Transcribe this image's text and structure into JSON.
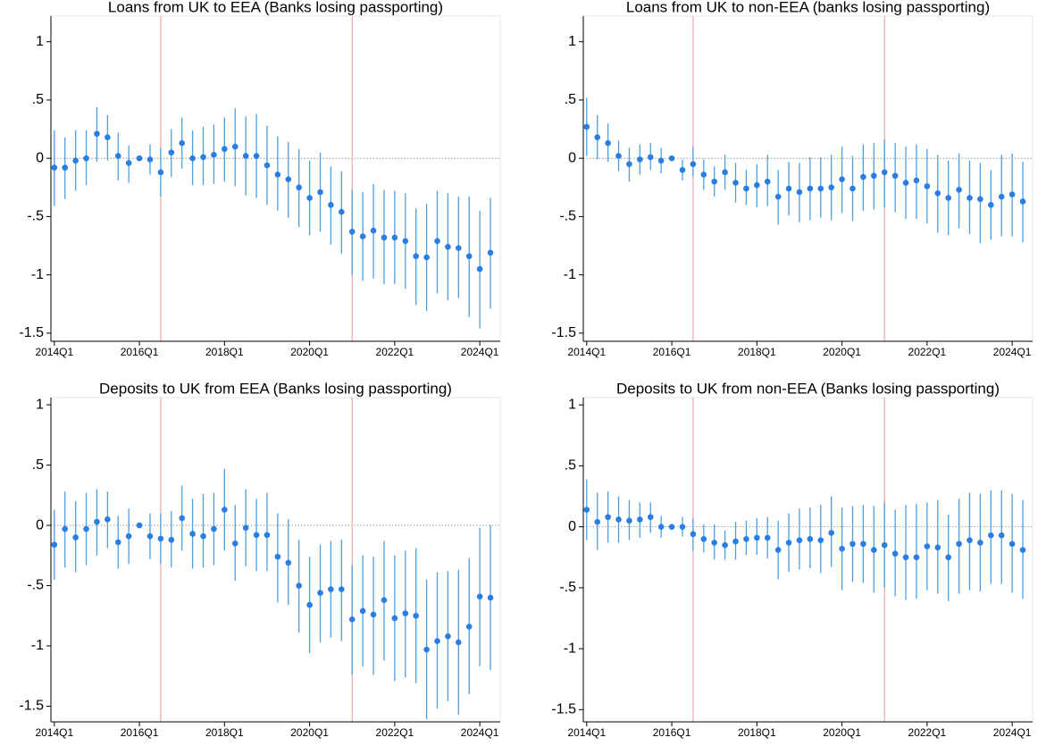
{
  "chart_data": [
    {
      "type": "errorbar",
      "title": "Loans from UK to EEA (Banks losing passporting)",
      "x": [
        2014,
        2014.25,
        2014.5,
        2014.75,
        2015,
        2015.25,
        2015.5,
        2015.75,
        2016,
        2016.25,
        2016.5,
        2016.75,
        2017,
        2017.25,
        2017.5,
        2017.75,
        2018,
        2018.25,
        2018.5,
        2018.75,
        2019,
        2019.25,
        2019.5,
        2019.75,
        2020,
        2020.25,
        2020.5,
        2020.75,
        2021,
        2021.25,
        2021.5,
        2021.75,
        2022,
        2022.25,
        2022.5,
        2022.75,
        2023,
        2023.25,
        2023.5,
        2023.75,
        2024,
        2024.25
      ],
      "values": [
        -0.08,
        -0.08,
        -0.02,
        0.0,
        0.21,
        0.18,
        0.02,
        -0.04,
        0.0,
        -0.01,
        -0.12,
        0.05,
        0.13,
        0.0,
        0.01,
        0.03,
        0.08,
        0.1,
        0.02,
        0.02,
        -0.06,
        -0.14,
        -0.18,
        -0.25,
        -0.34,
        -0.29,
        -0.4,
        -0.46,
        -0.63,
        -0.67,
        -0.62,
        -0.68,
        -0.68,
        -0.71,
        -0.84,
        -0.85,
        -0.71,
        -0.76,
        -0.77,
        -0.84,
        -0.95,
        -0.81
      ],
      "ci_low": [
        -0.41,
        -0.35,
        -0.28,
        -0.23,
        -0.03,
        -0.02,
        -0.19,
        -0.21,
        0.0,
        -0.14,
        -0.33,
        -0.16,
        -0.09,
        -0.23,
        -0.23,
        -0.22,
        -0.2,
        -0.24,
        -0.32,
        -0.34,
        -0.4,
        -0.45,
        -0.51,
        -0.59,
        -0.66,
        -0.63,
        -0.74,
        -0.82,
        -1.0,
        -1.05,
        -1.03,
        -1.08,
        -1.08,
        -1.12,
        -1.26,
        -1.31,
        -1.16,
        -1.22,
        -1.2,
        -1.36,
        -1.46,
        -1.29
      ],
      "ci_high": [
        0.24,
        0.18,
        0.24,
        0.24,
        0.44,
        0.37,
        0.22,
        0.11,
        0.0,
        0.12,
        0.09,
        0.25,
        0.35,
        0.24,
        0.27,
        0.29,
        0.35,
        0.43,
        0.36,
        0.38,
        0.28,
        0.19,
        0.14,
        0.08,
        -0.02,
        0.05,
        -0.07,
        -0.11,
        -0.27,
        -0.29,
        -0.22,
        -0.27,
        -0.28,
        -0.3,
        -0.43,
        -0.39,
        -0.28,
        -0.3,
        -0.33,
        -0.33,
        -0.45,
        -0.34
      ],
      "xlim": [
        2013.92,
        2024.48
      ],
      "ylim": [
        -1.57,
        1.22
      ],
      "xticks": [
        {
          "value": 2014,
          "label": "2014Q1"
        },
        {
          "value": 2016,
          "label": "2016Q1"
        },
        {
          "value": 2018,
          "label": "2018Q1"
        },
        {
          "value": 2020,
          "label": "2020Q1"
        },
        {
          "value": 2022,
          "label": "2022Q1"
        },
        {
          "value": 2024,
          "label": "2024Q1"
        }
      ],
      "yticks": [
        -1.5,
        -1,
        {
          "value": -0.5,
          "label": "-.5"
        },
        0,
        {
          "value": 0.5,
          "label": ".5"
        },
        1
      ],
      "vlines": [
        2016.5,
        2021
      ],
      "color": "#2a7de1",
      "ci_color": "#4aa0e6",
      "vline_color": "#f2a8a8"
    },
    {
      "type": "errorbar",
      "title": "Loans from UK to non-EEA (banks losing passporting)",
      "x": [
        2014,
        2014.25,
        2014.5,
        2014.75,
        2015,
        2015.25,
        2015.5,
        2015.75,
        2016,
        2016.25,
        2016.5,
        2016.75,
        2017,
        2017.25,
        2017.5,
        2017.75,
        2018,
        2018.25,
        2018.5,
        2018.75,
        2019,
        2019.25,
        2019.5,
        2019.75,
        2020,
        2020.25,
        2020.5,
        2020.75,
        2021,
        2021.25,
        2021.5,
        2021.75,
        2022,
        2022.25,
        2022.5,
        2022.75,
        2023,
        2023.25,
        2023.5,
        2023.75,
        2024,
        2024.25
      ],
      "values": [
        0.27,
        0.18,
        0.13,
        0.02,
        -0.05,
        -0.01,
        0.01,
        -0.02,
        0.0,
        -0.1,
        -0.05,
        -0.14,
        -0.2,
        -0.12,
        -0.21,
        -0.26,
        -0.23,
        -0.2,
        -0.33,
        -0.26,
        -0.29,
        -0.26,
        -0.26,
        -0.25,
        -0.18,
        -0.26,
        -0.16,
        -0.15,
        -0.12,
        -0.15,
        -0.21,
        -0.19,
        -0.24,
        -0.3,
        -0.34,
        -0.27,
        -0.34,
        -0.35,
        -0.4,
        -0.33,
        -0.31,
        -0.37
      ],
      "ci_low": [
        0.02,
        -0.01,
        -0.03,
        -0.11,
        -0.2,
        -0.14,
        -0.1,
        -0.13,
        0.0,
        -0.19,
        -0.16,
        -0.27,
        -0.33,
        -0.27,
        -0.38,
        -0.4,
        -0.42,
        -0.41,
        -0.57,
        -0.49,
        -0.55,
        -0.53,
        -0.51,
        -0.53,
        -0.47,
        -0.54,
        -0.45,
        -0.44,
        -0.42,
        -0.46,
        -0.52,
        -0.52,
        -0.56,
        -0.64,
        -0.66,
        -0.6,
        -0.65,
        -0.73,
        -0.7,
        -0.67,
        -0.67,
        -0.72
      ],
      "ci_high": [
        0.52,
        0.37,
        0.3,
        0.15,
        0.09,
        0.12,
        0.13,
        0.09,
        0.0,
        -0.01,
        0.1,
        -0.01,
        -0.07,
        0.03,
        -0.04,
        -0.1,
        -0.05,
        0.03,
        -0.1,
        -0.03,
        -0.04,
        0.01,
        0.01,
        0.03,
        0.1,
        0.02,
        0.12,
        0.13,
        0.16,
        0.13,
        0.1,
        0.12,
        0.08,
        0.03,
        -0.02,
        0.04,
        -0.02,
        -0.04,
        -0.1,
        0.03,
        0.04,
        -0.03
      ],
      "xlim": [
        2013.92,
        2024.48
      ],
      "ylim": [
        -1.57,
        1.22
      ],
      "xticks": [
        {
          "value": 2014,
          "label": "2014Q1"
        },
        {
          "value": 2016,
          "label": "2016Q1"
        },
        {
          "value": 2018,
          "label": "2018Q1"
        },
        {
          "value": 2020,
          "label": "2020Q1"
        },
        {
          "value": 2022,
          "label": "2022Q1"
        },
        {
          "value": 2024,
          "label": "2024Q1"
        }
      ],
      "yticks": [
        -1.5,
        -1,
        {
          "value": -0.5,
          "label": "-.5"
        },
        0,
        {
          "value": 0.5,
          "label": ".5"
        },
        1
      ],
      "vlines": [
        2016.5,
        2021
      ],
      "color": "#2a7de1",
      "ci_color": "#4aa0e6",
      "vline_color": "#f2a8a8"
    },
    {
      "type": "errorbar",
      "title": "Deposits to UK from EEA (Banks losing passporting)",
      "x": [
        2014,
        2014.25,
        2014.5,
        2014.75,
        2015,
        2015.25,
        2015.5,
        2015.75,
        2016,
        2016.25,
        2016.5,
        2016.75,
        2017,
        2017.25,
        2017.5,
        2017.75,
        2018,
        2018.25,
        2018.5,
        2018.75,
        2019,
        2019.25,
        2019.5,
        2019.75,
        2020,
        2020.25,
        2020.5,
        2020.75,
        2021,
        2021.25,
        2021.5,
        2021.75,
        2022,
        2022.25,
        2022.5,
        2022.75,
        2023,
        2023.25,
        2023.5,
        2023.75,
        2024,
        2024.25
      ],
      "values": [
        -0.16,
        -0.03,
        -0.1,
        -0.03,
        0.03,
        0.05,
        -0.14,
        -0.09,
        0.0,
        -0.09,
        -0.11,
        -0.12,
        0.06,
        -0.07,
        -0.09,
        -0.03,
        0.13,
        -0.15,
        -0.02,
        -0.08,
        -0.08,
        -0.26,
        -0.31,
        -0.5,
        -0.66,
        -0.56,
        -0.53,
        -0.53,
        -0.78,
        -0.71,
        -0.74,
        -0.62,
        -0.77,
        -0.73,
        -0.75,
        -1.03,
        -0.96,
        -0.92,
        -0.97,
        -0.84,
        -0.59,
        -0.6
      ],
      "ci_low": [
        -0.45,
        -0.35,
        -0.39,
        -0.33,
        -0.25,
        -0.19,
        -0.36,
        -0.32,
        0.0,
        -0.28,
        -0.32,
        -0.35,
        -0.21,
        -0.36,
        -0.35,
        -0.33,
        -0.21,
        -0.46,
        -0.34,
        -0.38,
        -0.38,
        -0.64,
        -0.66,
        -0.89,
        -1.06,
        -0.97,
        -0.93,
        -0.96,
        -1.24,
        -1.17,
        -1.24,
        -1.12,
        -1.29,
        -1.26,
        -1.31,
        -1.61,
        -1.52,
        -1.46,
        -1.57,
        -1.4,
        -1.17,
        -1.2
      ],
      "ci_high": [
        0.13,
        0.28,
        0.2,
        0.27,
        0.3,
        0.28,
        0.08,
        0.14,
        0.0,
        0.1,
        0.1,
        0.12,
        0.33,
        0.22,
        0.26,
        0.27,
        0.47,
        0.17,
        0.3,
        0.22,
        0.27,
        0.1,
        0.05,
        -0.12,
        -0.26,
        -0.16,
        -0.13,
        -0.12,
        -0.33,
        -0.25,
        -0.26,
        -0.13,
        -0.25,
        -0.21,
        -0.19,
        -0.45,
        -0.39,
        -0.38,
        -0.37,
        -0.27,
        -0.02,
        0.0
      ],
      "xlim": [
        2013.92,
        2024.48
      ],
      "ylim": [
        -1.63,
        1.06
      ],
      "xticks": [
        {
          "value": 2014,
          "label": "2014Q1"
        },
        {
          "value": 2016,
          "label": "2016Q1"
        },
        {
          "value": 2018,
          "label": "2018Q1"
        },
        {
          "value": 2020,
          "label": "2020Q1"
        },
        {
          "value": 2022,
          "label": "2022Q1"
        },
        {
          "value": 2024,
          "label": "2024Q1"
        }
      ],
      "yticks": [
        -1.5,
        -1,
        {
          "value": -0.5,
          "label": "-.5"
        },
        0,
        {
          "value": 0.5,
          "label": ".5"
        },
        1
      ],
      "vlines": [
        2016.5,
        2021
      ],
      "color": "#2a7de1",
      "ci_color": "#4aa0e6",
      "vline_color": "#f2a8a8"
    },
    {
      "type": "errorbar",
      "title": "Deposits to UK from non-EEA (Banks losing passporting)",
      "x": [
        2014,
        2014.25,
        2014.5,
        2014.75,
        2015,
        2015.25,
        2015.5,
        2015.75,
        2016,
        2016.25,
        2016.5,
        2016.75,
        2017,
        2017.25,
        2017.5,
        2017.75,
        2018,
        2018.25,
        2018.5,
        2018.75,
        2019,
        2019.25,
        2019.5,
        2019.75,
        2020,
        2020.25,
        2020.5,
        2020.75,
        2021,
        2021.25,
        2021.5,
        2021.75,
        2022,
        2022.25,
        2022.5,
        2022.75,
        2023,
        2023.25,
        2023.5,
        2023.75,
        2024,
        2024.25
      ],
      "values": [
        0.14,
        0.04,
        0.08,
        0.06,
        0.05,
        0.06,
        0.08,
        0.0,
        0.0,
        0.0,
        -0.06,
        -0.1,
        -0.13,
        -0.15,
        -0.12,
        -0.1,
        -0.09,
        -0.09,
        -0.19,
        -0.13,
        -0.11,
        -0.1,
        -0.11,
        -0.05,
        -0.18,
        -0.14,
        -0.14,
        -0.19,
        -0.15,
        -0.22,
        -0.25,
        -0.25,
        -0.16,
        -0.17,
        -0.25,
        -0.14,
        -0.11,
        -0.13,
        -0.07,
        -0.07,
        -0.14,
        -0.19
      ],
      "ci_low": [
        -0.11,
        -0.19,
        -0.13,
        -0.13,
        -0.11,
        -0.09,
        -0.05,
        -0.09,
        0.0,
        -0.08,
        -0.2,
        -0.21,
        -0.27,
        -0.27,
        -0.27,
        -0.23,
        -0.23,
        -0.26,
        -0.43,
        -0.37,
        -0.35,
        -0.34,
        -0.38,
        -0.33,
        -0.52,
        -0.45,
        -0.46,
        -0.54,
        -0.5,
        -0.57,
        -0.6,
        -0.59,
        -0.52,
        -0.55,
        -0.61,
        -0.55,
        -0.52,
        -0.53,
        -0.47,
        -0.47,
        -0.54,
        -0.59
      ],
      "ci_high": [
        0.39,
        0.28,
        0.29,
        0.25,
        0.22,
        0.2,
        0.2,
        0.09,
        0.0,
        0.08,
        0.07,
        0.02,
        0.02,
        -0.03,
        0.04,
        0.05,
        0.07,
        0.08,
        0.05,
        0.11,
        0.15,
        0.16,
        0.18,
        0.25,
        0.16,
        0.17,
        0.18,
        0.17,
        0.2,
        0.14,
        0.18,
        0.19,
        0.2,
        0.22,
        0.1,
        0.23,
        0.28,
        0.27,
        0.3,
        0.3,
        0.27,
        0.22
      ],
      "xlim": [
        2013.92,
        2024.48
      ],
      "ylim": [
        -1.6,
        1.06
      ],
      "xticks": [
        {
          "value": 2014,
          "label": "2014Q1"
        },
        {
          "value": 2016,
          "label": "2016Q1"
        },
        {
          "value": 2018,
          "label": "2018Q1"
        },
        {
          "value": 2020,
          "label": "2020Q1"
        },
        {
          "value": 2022,
          "label": "2022Q1"
        },
        {
          "value": 2024,
          "label": "2024Q1"
        }
      ],
      "yticks": [
        -1.5,
        -1,
        {
          "value": -0.5,
          "label": "-.5"
        },
        0,
        {
          "value": 0.5,
          "label": ".5"
        },
        1
      ],
      "vlines": [
        2016.5,
        2021
      ],
      "color": "#2a7de1",
      "ci_color": "#4aa0e6",
      "vline_color": "#f2a8a8"
    }
  ]
}
